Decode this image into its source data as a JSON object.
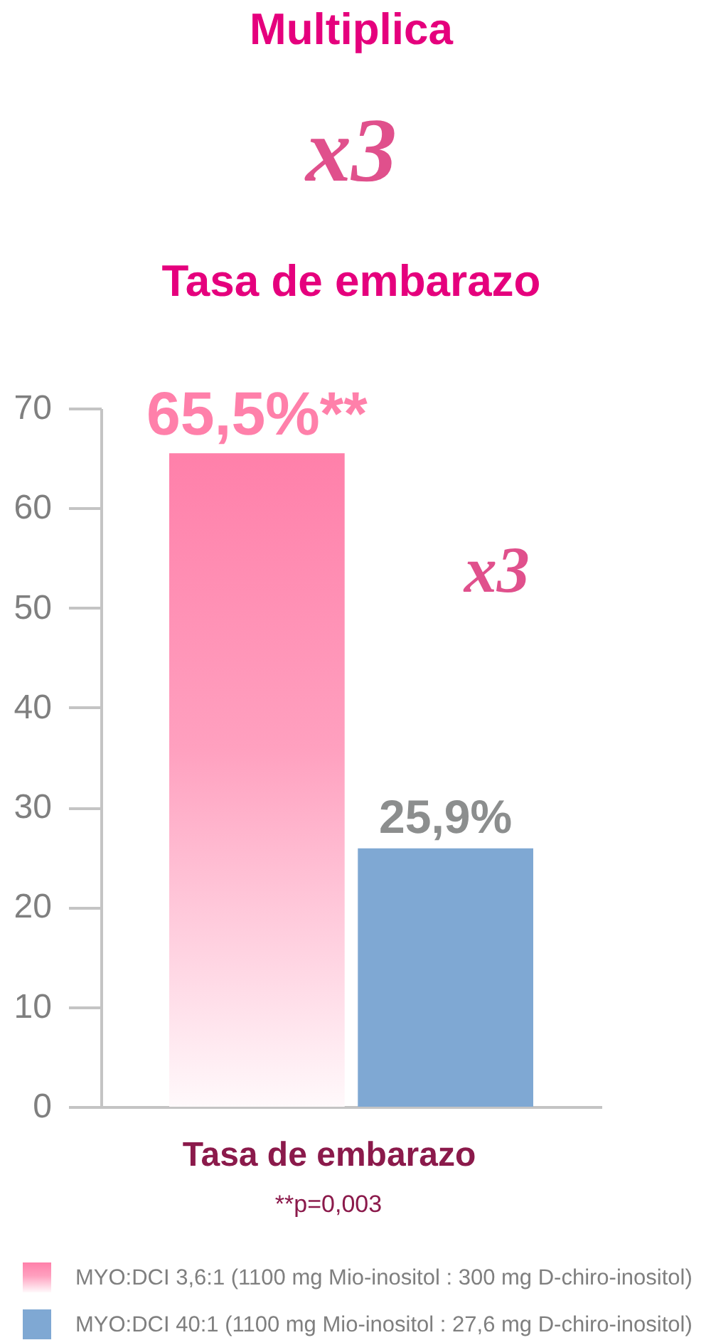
{
  "chart_data": {
    "type": "bar",
    "title": "Multiplica",
    "subtitle": "Tasa de embarazo",
    "xlabel": "Tasa de embarazo",
    "categories": [
      null
    ],
    "series": [
      {
        "name": "MYO:DCI 3,6:1 (1100 mg Mio-inositol : 300 mg D-chiro-inositol)",
        "color": "#ff80aa",
        "values": [
          65.5
        ],
        "value_labels": [
          "65,5%**"
        ]
      },
      {
        "name": "MYO:DCI 40:1 (1100 mg Mio-inositol : 27,6 mg D-chiro-inositol)",
        "color": "#7fa8d3",
        "values": [
          25.9
        ],
        "value_labels": [
          "25,9%"
        ]
      }
    ],
    "ylim": [
      0,
      70
    ],
    "yticks": [
      0,
      10,
      20,
      30,
      40,
      50,
      60,
      70
    ],
    "grid": false,
    "legend": "bottom left",
    "annotations": [
      "x3",
      "x3",
      "**p=0,003"
    ]
  }
}
